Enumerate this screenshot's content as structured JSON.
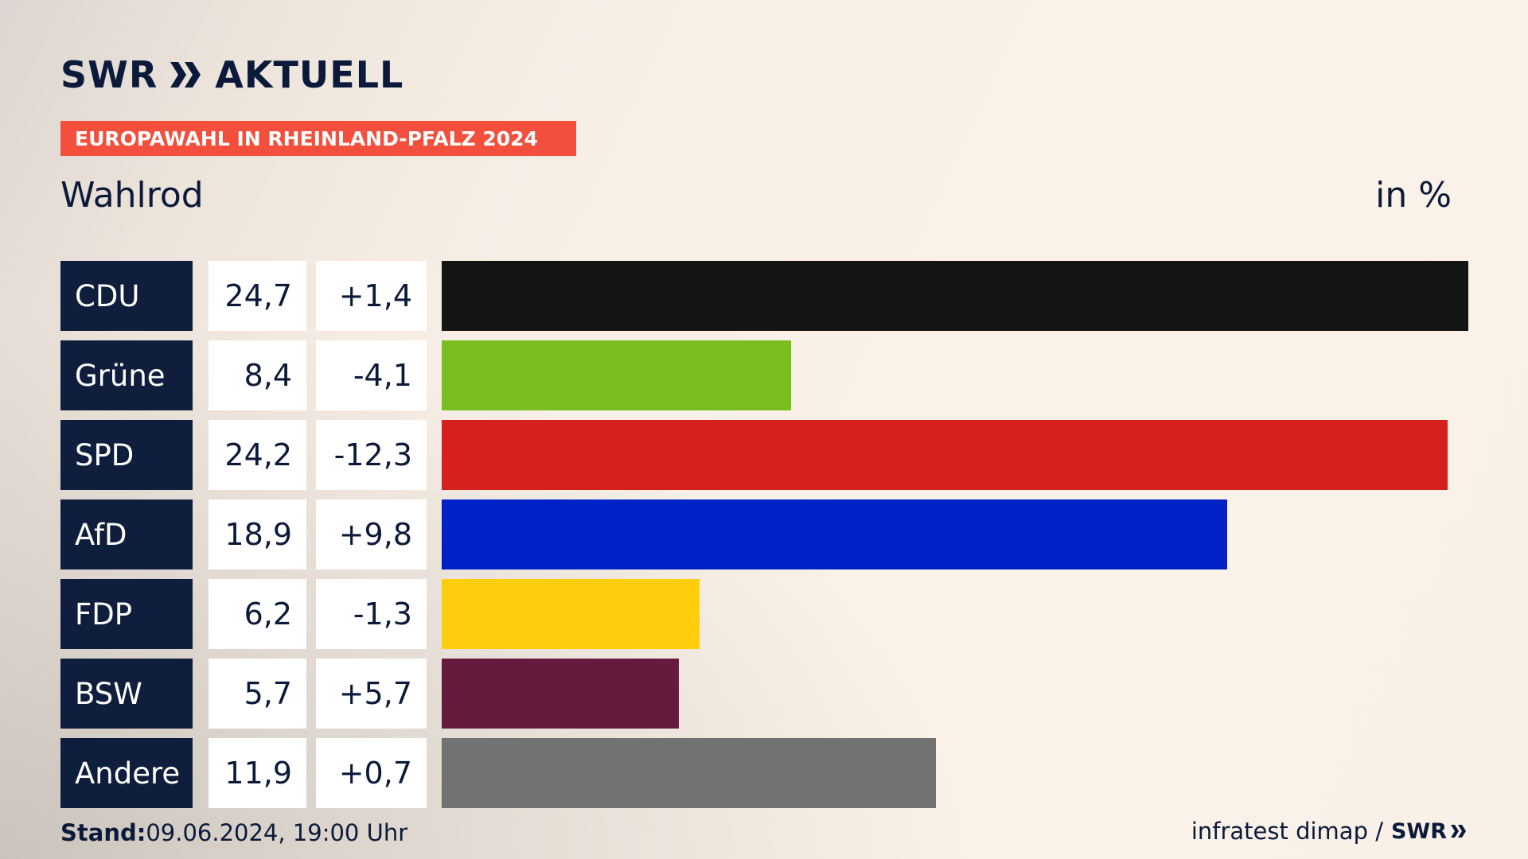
{
  "header": {
    "brand_left": "SWR",
    "brand_right": "AKTUELL",
    "banner": "EUROPAWAHL IN RHEINLAND-PFALZ 2024",
    "location": "Wahlrod",
    "unit": "in %"
  },
  "colors": {
    "navy": "#0f1e3c",
    "banner": "#f2503d"
  },
  "chart_data": {
    "type": "bar",
    "orientation": "horizontal",
    "categories": [
      "CDU",
      "Grüne",
      "SPD",
      "AfD",
      "FDP",
      "BSW",
      "Andere"
    ],
    "values": [
      24.7,
      8.4,
      24.2,
      18.9,
      6.2,
      5.7,
      11.9
    ],
    "value_labels": [
      "24,7",
      "8,4",
      "24,2",
      "18,9",
      "6,2",
      "5,7",
      "11,9"
    ],
    "changes": [
      1.4,
      -4.1,
      -12.3,
      9.8,
      -1.3,
      5.7,
      0.7
    ],
    "change_labels": [
      "+1,4",
      "-4,1",
      "-12,3",
      "+9,8",
      "-1,3",
      "+5,7",
      "+0,7"
    ],
    "colors": [
      "#141414",
      "#78be1e",
      "#d6201f",
      "#0020c8",
      "#fecd0b",
      "#661a3e",
      "#727272"
    ],
    "xlim": [
      0,
      24.7
    ],
    "grid": false,
    "legend": "none"
  },
  "footer": {
    "stand_label": "Stand:",
    "stand_value": "09.06.2024, 19:00 Uhr",
    "source": "infratest dimap /",
    "source_brand": "SWR"
  }
}
